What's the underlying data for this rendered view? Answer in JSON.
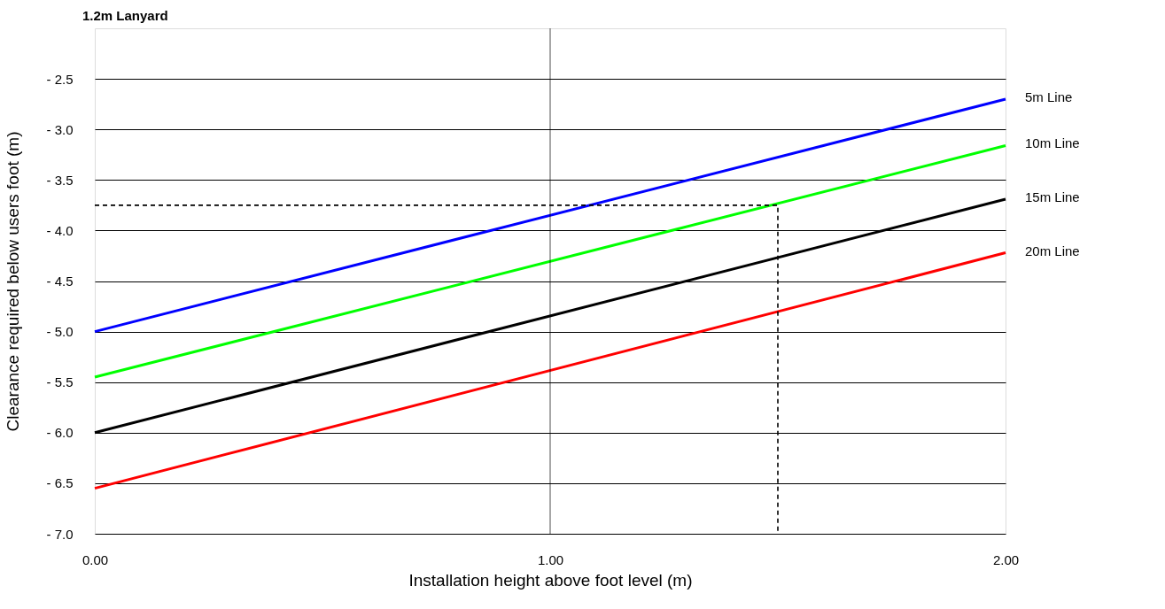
{
  "chart_data": {
    "type": "line",
    "title": "1.2m Lanyard",
    "xlabel": "Installation height above foot level (m)",
    "ylabel": "Clearance required below users foot (m)",
    "xlim": [
      0,
      2
    ],
    "xticks": [
      {
        "value": 0,
        "label": "0.00"
      },
      {
        "value": 1,
        "label": "1.00"
      },
      {
        "value": 2,
        "label": "2.00"
      }
    ],
    "ylim": [
      -7,
      -2
    ],
    "yticks": [
      {
        "value": -7,
        "label": "- 7.0"
      },
      {
        "value": -6.5,
        "label": "- 6.5"
      },
      {
        "value": -6,
        "label": "- 6.0"
      },
      {
        "value": -5.5,
        "label": "- 5.5"
      },
      {
        "value": -5,
        "label": "- 5.0"
      },
      {
        "value": -4.5,
        "label": "- 4.5"
      },
      {
        "value": -4,
        "label": "- 4.0"
      },
      {
        "value": -3.5,
        "label": "- 3.5"
      },
      {
        "value": -3,
        "label": "- 3.0"
      },
      {
        "value": -2.5,
        "label": "- 2.5"
      }
    ],
    "grid": "y",
    "ref_lines": [
      {
        "axis": "x",
        "value": 1,
        "color": "#000000"
      }
    ],
    "legend": false,
    "marker": "none",
    "line_style": "solid",
    "series": [
      {
        "name": "5m Line",
        "color": "#0000ff",
        "x": [
          0,
          2
        ],
        "values": [
          -5.0,
          -2.7
        ]
      },
      {
        "name": "10m Line",
        "color": "#00ff00",
        "x": [
          0,
          2
        ],
        "values": [
          -5.45,
          -3.16
        ]
      },
      {
        "name": "15m Line",
        "color": "#000000",
        "x": [
          0,
          2
        ],
        "values": [
          -6.0,
          -3.69
        ]
      },
      {
        "name": "20m Line",
        "color": "#ff0000",
        "x": [
          0,
          2
        ],
        "values": [
          -6.55,
          -4.22
        ]
      },
      {
        "color": "#000000",
        "line_style": "dashed",
        "x": [
          0,
          1.5,
          1.5
        ],
        "values": [
          -3.75,
          -3.75,
          -7
        ]
      }
    ]
  }
}
